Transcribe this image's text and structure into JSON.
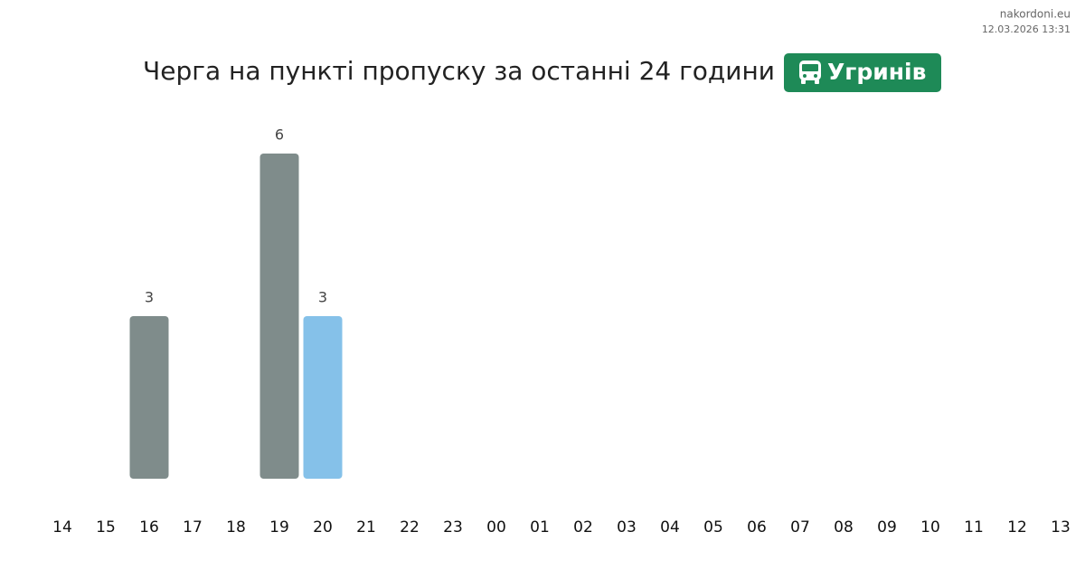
{
  "site": "nakordoni.eu",
  "timestamp": "12.03.2026 13:31",
  "chart_data": {
    "type": "bar",
    "title": "Черга на пункті пропуску за останні 24 години",
    "badge": "Угринів",
    "categories": [
      "14",
      "15",
      "16",
      "17",
      "18",
      "19",
      "20",
      "21",
      "22",
      "23",
      "00",
      "01",
      "02",
      "03",
      "04",
      "05",
      "06",
      "07",
      "08",
      "09",
      "10",
      "11",
      "12",
      "13"
    ],
    "values": [
      null,
      null,
      3,
      null,
      null,
      6,
      3,
      null,
      null,
      null,
      null,
      null,
      null,
      null,
      null,
      null,
      null,
      null,
      null,
      null,
      null,
      null,
      null,
      null
    ],
    "colors": [
      null,
      null,
      "#7f8c8b",
      null,
      null,
      "#7f8c8b",
      "#85c1e9",
      null,
      null,
      null,
      null,
      null,
      null,
      null,
      null,
      null,
      null,
      null,
      null,
      null,
      null,
      null,
      null,
      null
    ],
    "ylim": [
      0,
      6
    ]
  }
}
